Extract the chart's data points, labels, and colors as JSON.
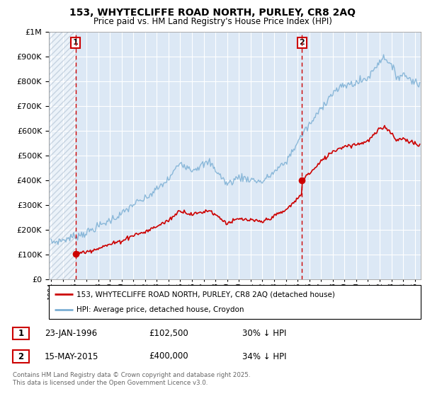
{
  "title": "153, WHYTECLIFFE ROAD NORTH, PURLEY, CR8 2AQ",
  "subtitle": "Price paid vs. HM Land Registry's House Price Index (HPI)",
  "legend_label_red": "153, WHYTECLIFFE ROAD NORTH, PURLEY, CR8 2AQ (detached house)",
  "legend_label_blue": "HPI: Average price, detached house, Croydon",
  "footer": "Contains HM Land Registry data © Crown copyright and database right 2025.\nThis data is licensed under the Open Government Licence v3.0.",
  "sale1_date_num": 1996.07,
  "sale1_price": 102500,
  "sale1_label": "23-JAN-1996",
  "sale1_price_label": "£102,500",
  "sale1_pct": "30% ↓ HPI",
  "sale2_date_num": 2015.37,
  "sale2_price": 400000,
  "sale2_label": "15-MAY-2015",
  "sale2_price_label": "£400,000",
  "sale2_pct": "34% ↓ HPI",
  "hpi_color": "#7bafd4",
  "price_color": "#cc0000",
  "marker_color": "#cc0000",
  "vline_color": "#cc0000",
  "background_plot": "#dce8f5",
  "ylim": [
    0,
    1000000
  ],
  "xlim_start": 1993.8,
  "xlim_end": 2025.5
}
